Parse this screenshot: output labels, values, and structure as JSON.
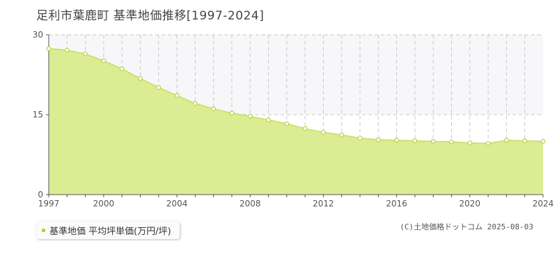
{
  "colors": {
    "fill": "#dcec92",
    "line": "#c5df5e",
    "marker_stroke": "#b7d24a",
    "grid": "#c8c8c8",
    "upper_band": "#f7f6f9",
    "axis": "#555555",
    "swatch": "#b5d43b"
  },
  "chart_data": {
    "type": "area",
    "title": "足利市葉鹿町 基準地価推移[1997-2024]",
    "xlabel": "",
    "ylabel": "",
    "ylim": [
      0,
      30
    ],
    "xlim": [
      1997,
      2024
    ],
    "y_ticks": [
      0,
      15,
      30
    ],
    "x_ticks": [
      1997,
      2000,
      2004,
      2008,
      2012,
      2016,
      2020,
      2024
    ],
    "grid": true,
    "series": [
      {
        "name": "基準地価 平均坪単価(万円/坪)",
        "x": [
          1997,
          1998,
          1999,
          2000,
          2001,
          2002,
          2003,
          2004,
          2005,
          2006,
          2007,
          2008,
          2009,
          2010,
          2011,
          2012,
          2013,
          2014,
          2015,
          2016,
          2017,
          2018,
          2019,
          2020,
          2021,
          2022,
          2023,
          2024
        ],
        "values": [
          27.4,
          27.1,
          26.4,
          25.1,
          23.6,
          21.8,
          20.1,
          18.6,
          17.1,
          16.1,
          15.3,
          14.7,
          14.0,
          13.3,
          12.4,
          11.7,
          11.2,
          10.6,
          10.3,
          10.2,
          10.1,
          10.0,
          9.9,
          9.7,
          9.6,
          10.2,
          10.1,
          10.0
        ]
      }
    ]
  },
  "legend": {
    "label": "基準地価 平均坪単価(万円/坪)"
  },
  "credit": "(C)土地価格ドットコム 2025-08-03"
}
